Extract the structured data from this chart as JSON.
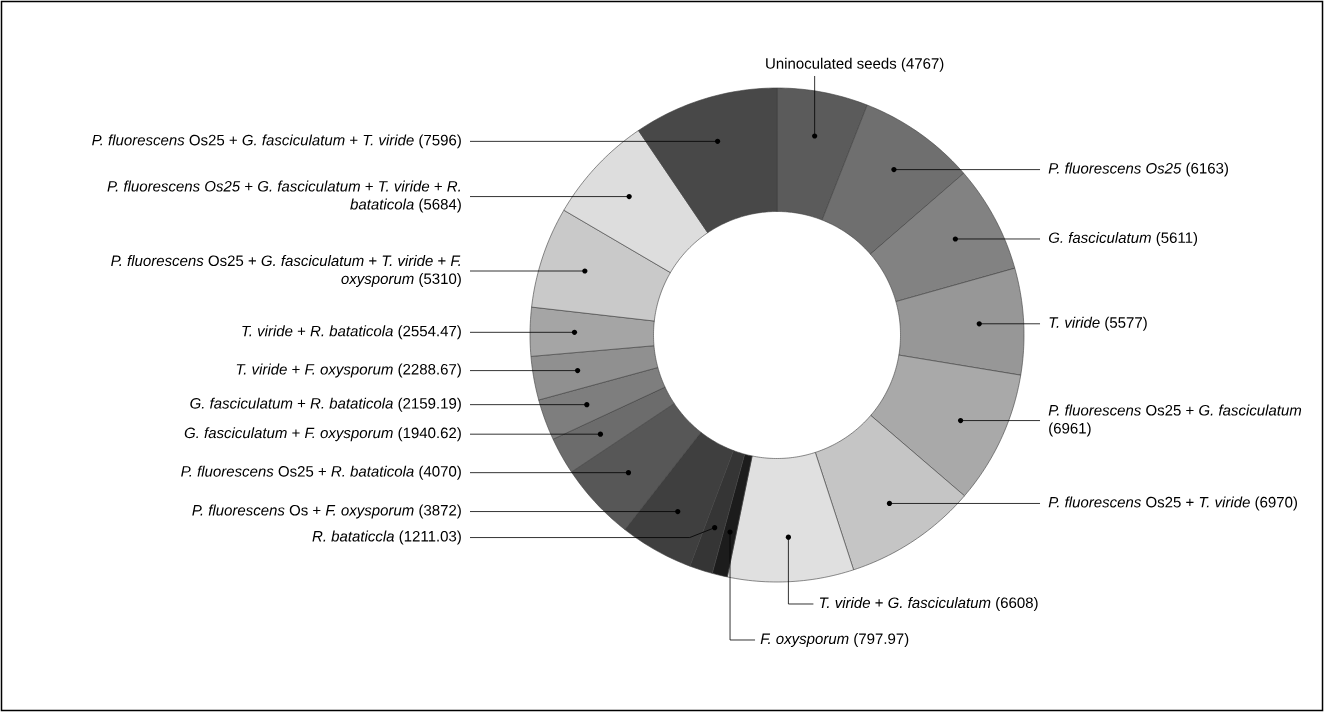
{
  "chart_data": {
    "type": "donut",
    "categories": [
      "Uninoculated seeds",
      "*P. fluorescens Os25*",
      "*G. fasciculatum*",
      "*T. viride*",
      "*P. fluorescens* Os25 + *G. fasciculatum*",
      "*P. fluorescens* Os25 + *T. viride*",
      "*T. viride* + *G. fasciculatum*",
      "*F. oxysporum*",
      "*R. bataticcla*",
      "*P. fluorescens* Os + *F. oxysporum*",
      "*P. fluorescens* Os25 + *R. bataticola*",
      "*G. fasciculatum* + *F. oxysporum*",
      "*G. fasciculatum* + *R. bataticola*",
      "*T. viride* + *F. oxysporum*",
      "*T. viride* + *R. bataticola*",
      "*P. fluorescens* Os25 + *G. fasciculatum* + *T. viride* + *F. oxysporum*",
      "*P. fluorescens Os25* + *G. fasciculatum* + *T. viride* + *R. bataticola*",
      "*P. fluorescens* Os25 + *G. fasciculatum* + *T. viride*"
    ],
    "values": [
      4767,
      6163,
      5611,
      5577,
      6961,
      6970,
      6608,
      797.97,
      1211.03,
      3872,
      4070,
      1940.62,
      2159.19,
      2288.67,
      2554.47,
      5310,
      5684,
      7596
    ],
    "colors": [
      "#5b5b5b",
      "#6f6f6f",
      "#828282",
      "#979797",
      "#a9a9a9",
      "#c5c5c5",
      "#e0e0e0",
      "#1c1c1c",
      "#353535",
      "#3f3f3f",
      "#575757",
      "#6c6c6c",
      "#7e7e7e",
      "#909090",
      "#a5a5a5",
      "#c9c9c9",
      "#dddddd",
      "#484848"
    ],
    "value_labels": [
      "(4767)",
      "(6163)",
      "(5611)",
      "(5577)",
      "(6961)",
      "(6970)",
      "(6608)",
      "(797.97)",
      "(1211.03)",
      "(3872)",
      "(4070)",
      "(1940.62)",
      "(2159.19)",
      "(2288.67)",
      "(2554.47)",
      "(5310)",
      "(5684)",
      "(7596)"
    ]
  }
}
